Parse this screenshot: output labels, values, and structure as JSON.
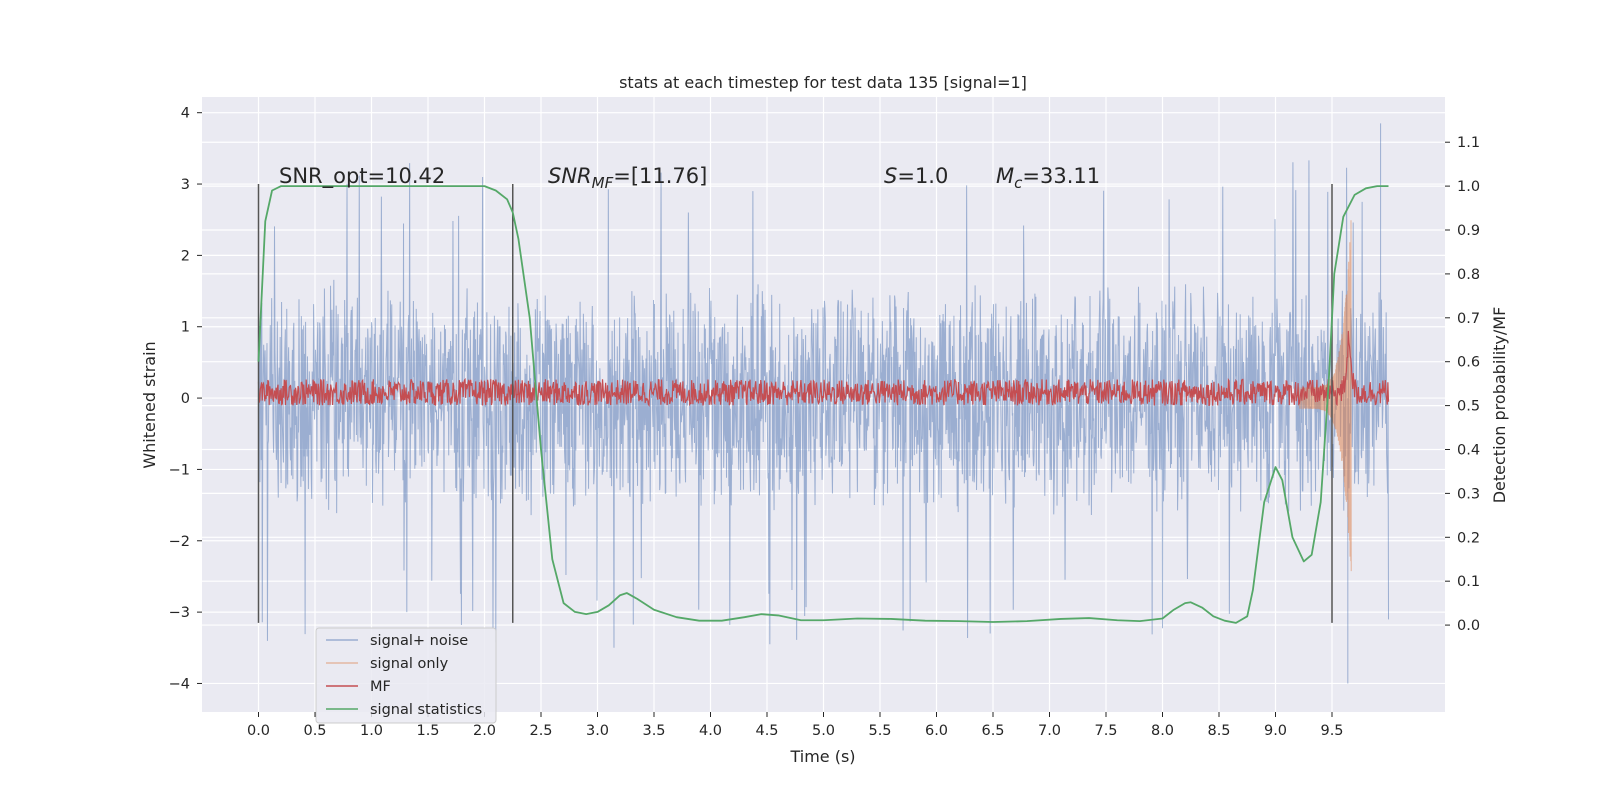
{
  "chart_data": {
    "type": "line",
    "title": "stats at each timestep for test data 135 [signal=1]",
    "xlabel": "Time (s)",
    "ylabel": "Whitened strain",
    "ylabel_right": "Detection probability/MF",
    "xlim": [
      -0.5,
      10.5
    ],
    "ylim": [
      -4.4,
      4.22
    ],
    "ylim_right": [
      -0.198,
      1.203
    ],
    "x_ticks": [
      "0.0",
      "0.5",
      "1.0",
      "1.5",
      "2.0",
      "2.5",
      "3.0",
      "3.5",
      "4.0",
      "4.5",
      "5.0",
      "5.5",
      "6.0",
      "6.5",
      "7.0",
      "7.5",
      "8.0",
      "8.5",
      "9.0",
      "9.5"
    ],
    "y_ticks": [
      "4",
      "3",
      "2",
      "1",
      "0",
      "−1",
      "−2",
      "−3",
      "−4"
    ],
    "y_right_ticks": [
      "1.1",
      "1.0",
      "0.9",
      "0.8",
      "0.7",
      "0.6",
      "0.5",
      "0.4",
      "0.3",
      "0.2",
      "0.1",
      "0.0"
    ],
    "grid": true,
    "legend_position": "lower-left",
    "annotations": [
      {
        "parts": [
          {
            "t": "SNR_opt=10.42",
            "i": false
          }
        ]
      },
      {
        "parts": [
          {
            "t": "SNR",
            "i": true
          },
          {
            "t": "MF",
            "i": true,
            "sub": true
          },
          {
            "t": "=[11.76]",
            "i": false
          }
        ]
      },
      {
        "parts": [
          {
            "t": "S",
            "i": true
          },
          {
            "t": "=1.0",
            "i": false
          }
        ]
      },
      {
        "parts": [
          {
            "t": "M",
            "i": true
          },
          {
            "t": "c",
            "i": true,
            "sub": true
          },
          {
            "t": "=33.11",
            "i": false
          }
        ]
      }
    ],
    "window_markers_x": [
      0.0,
      2.25,
      9.5
    ],
    "series": [
      {
        "name": "signal+ noise",
        "color": "#4c72b0",
        "axis": "left",
        "kind": "noise",
        "x_range": [
          0.0,
          10.0
        ],
        "envelope": [
          -2.1,
          2.0
        ],
        "peaks": [
          -4.0,
          3.85
        ]
      },
      {
        "name": "signal only",
        "color": "#dd8452",
        "axis": "left",
        "kind": "chirp",
        "x_range": [
          9.2,
          9.67
        ],
        "peaks": [
          -3.0,
          2.4
        ]
      },
      {
        "name": "MF",
        "color": "#c44e52",
        "axis": "right",
        "kind": "noise",
        "x_range": [
          0.0,
          10.0
        ],
        "band": [
          0.5,
          0.56
        ],
        "peak": {
          "x": 9.65,
          "y": 0.68
        }
      },
      {
        "name": "signal statistics",
        "color": "#55a868",
        "axis": "right",
        "kind": "curve",
        "x": [
          0.0,
          0.06,
          0.12,
          0.2,
          0.3,
          0.5,
          1.0,
          1.5,
          2.0,
          2.1,
          2.2,
          2.25,
          2.3,
          2.4,
          2.5,
          2.6,
          2.7,
          2.8,
          2.9,
          3.0,
          3.1,
          3.2,
          3.26,
          3.35,
          3.5,
          3.7,
          3.9,
          4.1,
          4.3,
          4.45,
          4.6,
          4.8,
          5.0,
          5.3,
          5.6,
          5.9,
          6.2,
          6.5,
          6.8,
          7.1,
          7.35,
          7.6,
          7.8,
          8.0,
          8.1,
          8.2,
          8.25,
          8.35,
          8.45,
          8.55,
          8.65,
          8.75,
          8.8,
          8.9,
          9.0,
          9.06,
          9.15,
          9.25,
          9.32,
          9.4,
          9.47,
          9.52,
          9.6,
          9.7,
          9.8,
          9.9,
          10.0
        ],
        "y": [
          0.6,
          0.92,
          0.99,
          1.0,
          1.0,
          1.0,
          1.0,
          1.0,
          1.0,
          0.99,
          0.97,
          0.94,
          0.88,
          0.7,
          0.4,
          0.15,
          0.05,
          0.03,
          0.025,
          0.03,
          0.045,
          0.068,
          0.073,
          0.06,
          0.035,
          0.018,
          0.01,
          0.01,
          0.018,
          0.025,
          0.022,
          0.011,
          0.011,
          0.015,
          0.014,
          0.01,
          0.009,
          0.007,
          0.009,
          0.014,
          0.016,
          0.011,
          0.009,
          0.015,
          0.035,
          0.05,
          0.052,
          0.04,
          0.02,
          0.01,
          0.005,
          0.02,
          0.08,
          0.28,
          0.36,
          0.33,
          0.2,
          0.145,
          0.16,
          0.28,
          0.55,
          0.8,
          0.93,
          0.98,
          0.995,
          1.0,
          1.0
        ]
      }
    ]
  }
}
